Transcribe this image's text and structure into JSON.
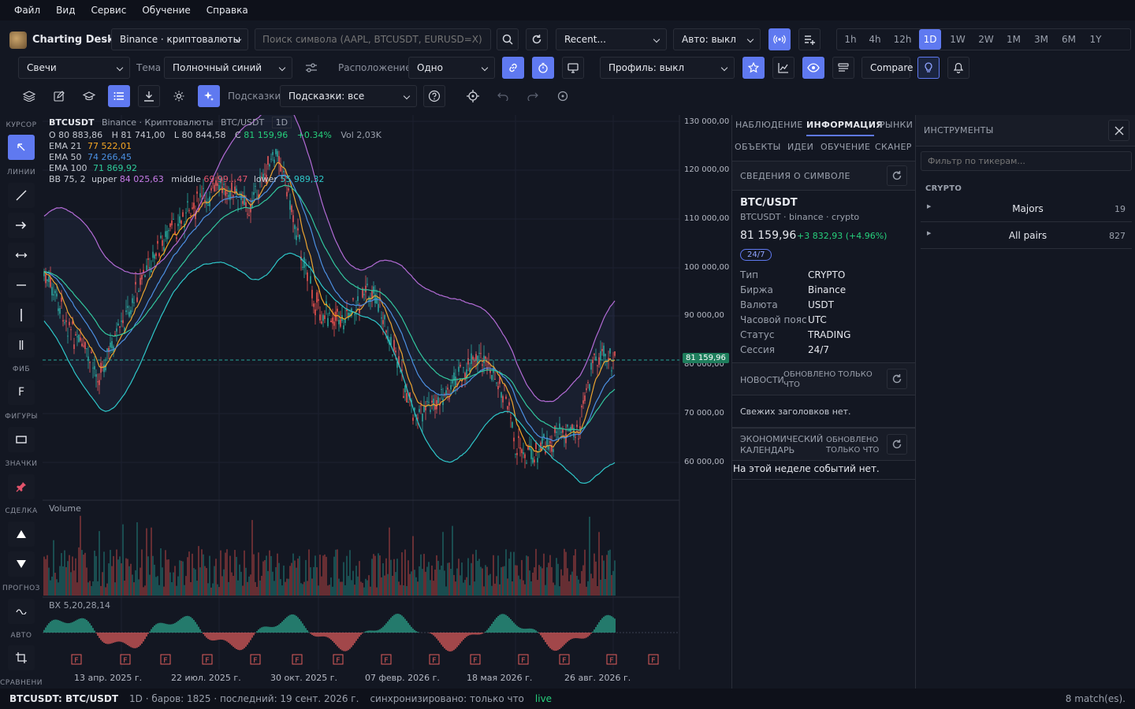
{
  "menu": [
    "Файл",
    "Вид",
    "Сервис",
    "Обучение",
    "Справка"
  ],
  "app": {
    "title": "Charting Desk",
    "exchange": "Binance · криптовалюты",
    "search_placeholder": "Поиск символа (AAPL, BTCUSDT, EURUSD=X)",
    "recent": "Recent...",
    "auto": "Авто: выкл"
  },
  "timeframes": [
    "1h",
    "4h",
    "12h",
    "1D",
    "1W",
    "2W",
    "1M",
    "3M",
    "6M",
    "1Y"
  ],
  "active_timeframe": "1D",
  "toolbar2": {
    "chart_type": "Свечи",
    "theme_label": "Тема",
    "theme": "Полночный синий",
    "layout_label": "Расположение",
    "layout": "Одно",
    "profile": "Профиль: выкл",
    "compare": "Compare"
  },
  "toolbar3": {
    "hints_label": "Подсказки",
    "hints": "Подсказки: все"
  },
  "sidebar_sections": [
    "КУРСОР",
    "ЛИНИИ",
    "ФИБ",
    "ФИГУРЫ",
    "ЗНАЧКИ",
    "СДЕЛКА",
    "ПРОГНОЗ",
    "АВТО",
    "СРАВНЕНИЕ"
  ],
  "legend": {
    "symbol": "BTCUSDT",
    "exchange": "Binance · Криптовалюты",
    "pair": "BTC/USDT",
    "tf": "1D",
    "open": "O 80 883,86",
    "high": "H 81 741,00",
    "low": "L 80 844,58",
    "close_label": "C",
    "close": "81 159,96",
    "change": "+0.34%",
    "vol": "Vol 2,03K",
    "ema21_label": "EMA 21",
    "ema21": "77 522,01",
    "ema50_label": "EMA 50",
    "ema50": "74 266,45",
    "ema100_label": "EMA 100",
    "ema100": "71 869,92",
    "bb_label": "BB 75, 2",
    "bb_upper_label": "upper",
    "bb_upper": "84 025,63",
    "bb_middle_label": "middle",
    "bb_middle": "69 99...47",
    "bb_lower_label": "lower",
    "bb_lower": "55 989,32"
  },
  "price_axis": [
    "130 000,00",
    "120 000,00",
    "110 000,00",
    "100 000,00",
    "90 000,00",
    "80 000,00",
    "70 000,00",
    "60 000,00"
  ],
  "last_price": "81 159,96",
  "volume_label": "Volume",
  "osc_label": "BX 5,20,28,14",
  "date_axis": [
    "13 апр. 2025 г.",
    "22 июл. 2025 г.",
    "30 окт. 2025 г.",
    "07 февр. 2026 г.",
    "18 мая 2026 г.",
    "26 авг. 2026 г."
  ],
  "panel_tabs": [
    "НАБЛЮДЕНИЕ",
    "ИНФОРМАЦИЯ",
    "РЫНКИ",
    "ОБЪЕКТЫ",
    "ИДЕИ",
    "ОБУЧЕНИЕ",
    "СКАНЕР"
  ],
  "info": {
    "section": "СВЕДЕНИЯ О СИМВОЛЕ",
    "name": "BTC/USDT",
    "sub": "BTCUSDT · binance · crypto",
    "price": "81 159,96",
    "change": "+3 832,93 (+4.96%)",
    "badge": "24/7",
    "rows": [
      [
        "Тип",
        "CRYPTO"
      ],
      [
        "Биржа",
        "Binance"
      ],
      [
        "Валюта",
        "USDT"
      ],
      [
        "Часовой пояс",
        "UTC"
      ],
      [
        "Статус",
        "TRADING"
      ],
      [
        "Сессия",
        "24/7"
      ]
    ],
    "news_title": "НОВОСТИ",
    "news_updated": "ОБНОВЛЕНО ТОЛЬКО ЧТО",
    "news_empty": "Свежих заголовков нет.",
    "cal_title": "ЭКОНОМИЧЕСКИЙ КАЛЕНДАРЬ",
    "cal_updated": "ОБНОВЛЕНО ТОЛЬКО ЧТО",
    "cal_empty": "На этой неделе событий нет."
  },
  "tools": {
    "title": "ИНСТРУМЕНТЫ",
    "filter_placeholder": "Фильтр по тикерам...",
    "group": "CRYPTO",
    "items": [
      {
        "name": "Majors",
        "count": "19"
      },
      {
        "name": "All pairs",
        "count": "827"
      }
    ]
  },
  "status": {
    "symbol": "BTCUSDT: BTC/USDT",
    "details": "1D · баров: 1825 · последний: 19 сент. 2026 г.",
    "sync": "синхронизировано: только что",
    "live": "live",
    "matches": "8 match(es)."
  },
  "colors": {
    "accent": "#5f79f0",
    "up": "#26a69a",
    "down": "#ef5350",
    "ema21": "#f5a623",
    "ema50": "#4a90e2",
    "ema100": "#2ecc9a",
    "bb": "#b36bd6",
    "bb_lower": "#2ec7c9"
  }
}
